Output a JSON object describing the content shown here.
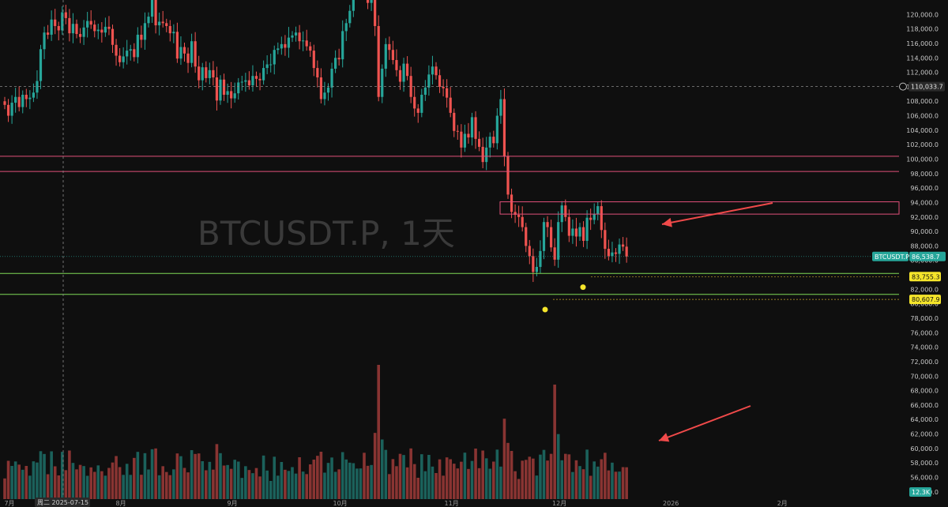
{
  "watermark": "BTCUSDT.P, 1天",
  "crosshair": {
    "price_label": "110,033.7",
    "date_label": "周二 2025-07-15"
  },
  "symbol_tag": {
    "name": "BTCUSDT.P",
    "price": "86,538.7",
    "color": "#26a69a"
  },
  "marker_labels": {
    "a": "83,755.3",
    "b": "80,607.9"
  },
  "volume_tag": "12.3K",
  "colors": {
    "up": "#26a69a",
    "down": "#ef5350",
    "zone": "#e0507a",
    "support": "#7ed957",
    "arrow": "#f04a4a",
    "highlight": "#f5e52b"
  },
  "chart_data": {
    "type": "candlestick",
    "ylim": [
      53000,
      122000
    ],
    "y_ticks": [
      54000,
      56000,
      58000,
      60000,
      62000,
      64000,
      66000,
      68000,
      70000,
      72000,
      74000,
      76000,
      78000,
      80000,
      82000,
      84000,
      86000,
      88000,
      90000,
      92000,
      94000,
      96000,
      98000,
      100000,
      102000,
      104000,
      106000,
      108000,
      110000,
      112000,
      114000,
      116000,
      118000,
      120000
    ],
    "y_tick_labels": [
      "54,000.0",
      "56,000.0",
      "58,000.0",
      "60,000.0",
      "62,000.0",
      "64,000.0",
      "66,000.0",
      "68,000.0",
      "70,000.0",
      "72,000.0",
      "74,000.0",
      "76,000.0",
      "78,000.0",
      "80,000.0",
      "82,000.0",
      "84,000.0",
      "86,000.0",
      "88,000.0",
      "90,000.0",
      "92,000.0",
      "94,000.0",
      "96,000.0",
      "98,000.0",
      "100,000.0",
      "102,000.0",
      "104,000.0",
      "106,000.0",
      "108,000.0",
      "110,000.0",
      "112,000.0",
      "114,000.0",
      "116,000.0",
      "118,000.0",
      "120,000.0"
    ],
    "x_labels": [
      {
        "label": "7月",
        "index": 0
      },
      {
        "label": "8月",
        "index": 31
      },
      {
        "label": "9月",
        "index": 62
      },
      {
        "label": "10月",
        "index": 92
      },
      {
        "label": "11月",
        "index": 123
      },
      {
        "label": "12月",
        "index": 153
      },
      {
        "label": "2026",
        "index": 184
      },
      {
        "label": "2月",
        "index": 215
      }
    ],
    "x_count": 245,
    "closes": [
      107500,
      106000,
      107800,
      108600,
      107200,
      108900,
      108300,
      108500,
      109200,
      110800,
      115200,
      117500,
      117200,
      119300,
      118400,
      117800,
      120300,
      119500,
      117400,
      118700,
      117300,
      116900,
      118200,
      119100,
      118600,
      117700,
      117900,
      117500,
      118300,
      118000,
      115800,
      114300,
      113400,
      114200,
      115000,
      115200,
      114100,
      117200,
      116500,
      118800,
      119700,
      122000,
      118500,
      119000,
      118800,
      118400,
      117400,
      117600,
      113900,
      115500,
      114600,
      113300,
      116300,
      112800,
      110900,
      112700,
      111200,
      112300,
      111300,
      108100,
      111000,
      108900,
      109400,
      108400,
      109100,
      110600,
      110700,
      110900,
      110200,
      111500,
      111100,
      110900,
      112600,
      113100,
      113100,
      115100,
      115300,
      115900,
      115400,
      116800,
      117100,
      117500,
      116300,
      116400,
      115600,
      115000,
      112600,
      111300,
      108300,
      109200,
      109900,
      112500,
      114000,
      113800,
      117700,
      118800,
      120500,
      123200,
      123400,
      124700,
      122700,
      121600,
      123900,
      118400,
      108600,
      112500,
      115900,
      115100,
      113700,
      112300,
      110700,
      113200,
      111500,
      108600,
      107000,
      106400,
      108900,
      109900,
      111700,
      112800,
      111600,
      110000,
      109800,
      108500,
      106400,
      103900,
      103800,
      101600,
      103500,
      103000,
      105800,
      102800,
      101700,
      99600,
      101600,
      103100,
      102200,
      106000,
      108300,
      100400,
      95100,
      92700,
      92300,
      92000,
      90600,
      88000,
      86600,
      84400,
      85100,
      87300,
      91300,
      90600,
      87800,
      86100,
      91300,
      93600,
      92000,
      89400,
      90400,
      89300,
      90600,
      88700,
      91900,
      91600,
      92400,
      93500,
      90200,
      87600,
      86600,
      87100,
      86900,
      88200,
      87900,
      86540
    ]
  }
}
